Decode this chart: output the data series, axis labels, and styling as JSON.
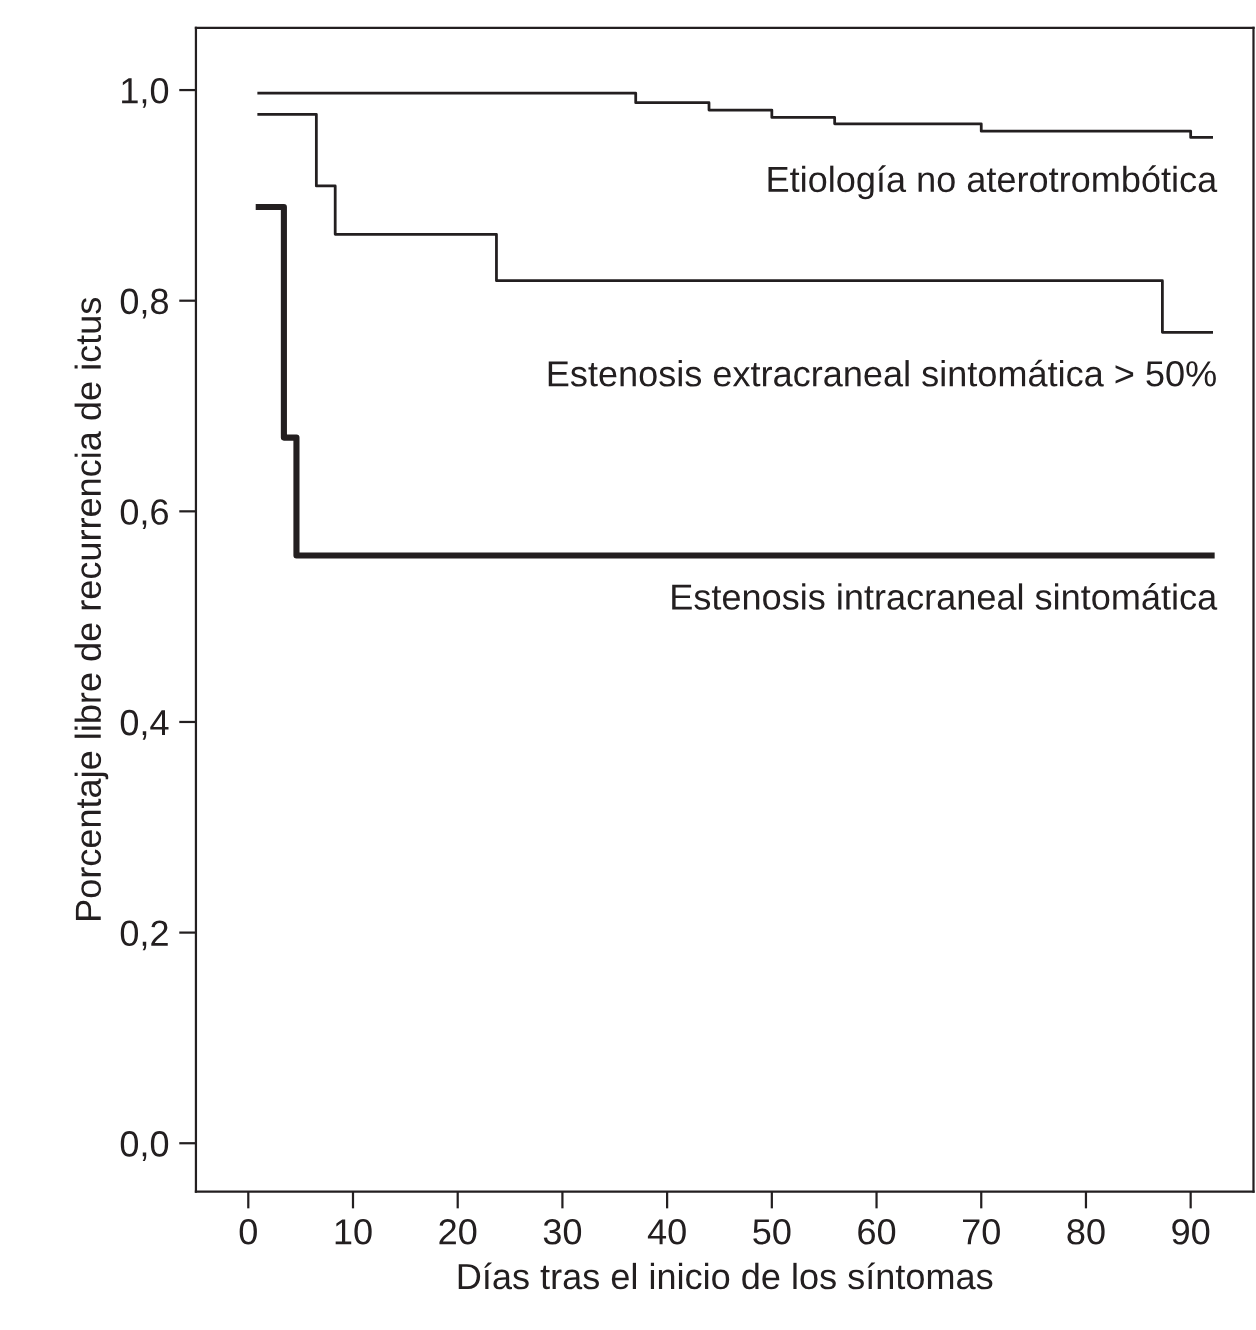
{
  "chart_data": {
    "type": "step",
    "xlabel": "Días tras el inicio de los síntomas",
    "ylabel": "Porcentaje libre de recurrencia de ictus",
    "xlim": [
      -5,
      96
    ],
    "ylim": [
      -0.046,
      1.059
    ],
    "xticks": [
      0,
      10,
      20,
      30,
      40,
      50,
      60,
      70,
      80,
      90
    ],
    "yticks": [
      {
        "value": 0.0,
        "label": "0,0"
      },
      {
        "value": 0.2,
        "label": "0,2"
      },
      {
        "value": 0.4,
        "label": "0,4"
      },
      {
        "value": 0.6,
        "label": "0,6"
      },
      {
        "value": 0.8,
        "label": "0,8"
      },
      {
        "value": 1.0,
        "label": "1,0"
      }
    ],
    "grid": false,
    "legend": false,
    "series": [
      {
        "name": "Etiología no aterotrombótica",
        "color": "#231f20",
        "x": [
          1,
          37,
          44,
          50,
          56,
          70,
          90,
          92
        ],
        "values": [
          0.997,
          0.988,
          0.981,
          0.974,
          0.968,
          0.961,
          0.955,
          0.955
        ]
      },
      {
        "name": "Estenosis extracraneal sintomática > 50%",
        "color": "#231f20",
        "x": [
          1,
          6.5,
          8.3,
          23.7,
          87.3,
          92
        ],
        "values": [
          0.977,
          0.909,
          0.863,
          0.819,
          0.77,
          0.77
        ]
      },
      {
        "name": "Estenosis intracraneal sintomática",
        "color": "#231f20",
        "x": [
          1,
          3.4,
          4.6,
          92
        ],
        "values": [
          0.889,
          0.67,
          0.558,
          0.558
        ]
      }
    ]
  }
}
